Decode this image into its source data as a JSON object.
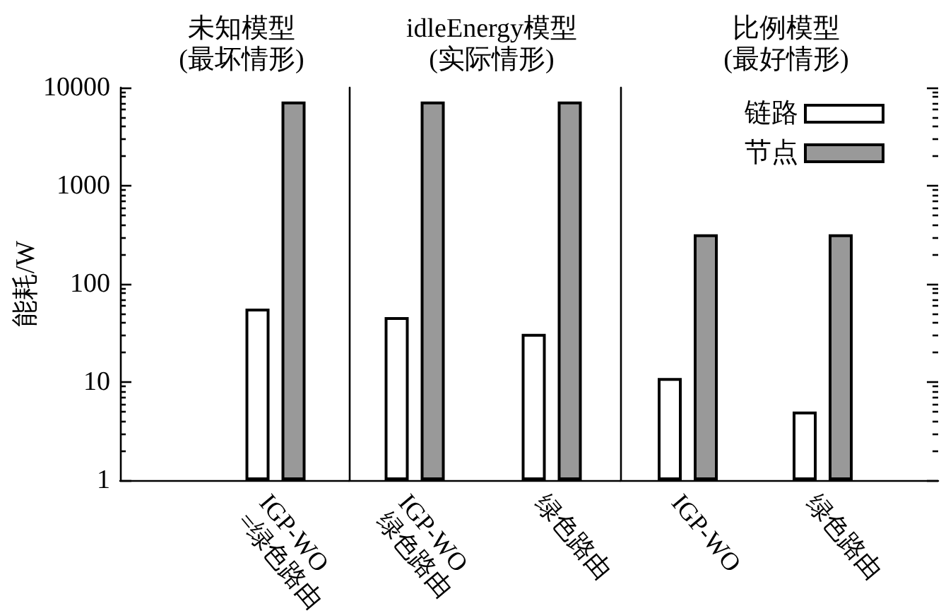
{
  "chart_data": [
    {
      "type": "bar",
      "title": "未知模型",
      "subtitle": "(最坏情形)",
      "ylabel": "能耗/W",
      "categories": [
        "IGP-WO\n=绿色路由"
      ],
      "series": [
        {
          "color": "#ffffff",
          "values": [
            56
          ]
        },
        {
          "color": "#999999",
          "values": [
            7200
          ]
        }
      ],
      "ylim": [
        1,
        10000
      ],
      "yticks": [
        1,
        10,
        100,
        1000,
        10000
      ],
      "log": true
    },
    {
      "type": "bar",
      "title": "idleEnergy模型",
      "subtitle": "(实际情形)",
      "categories": [
        "IGP-WO\n绿色路由",
        "绿色路由"
      ],
      "series": [
        {
          "color": "#ffffff",
          "values": [
            46,
            31
          ]
        },
        {
          "color": "#999999",
          "values": [
            7200,
            7200
          ]
        }
      ],
      "ylim": [
        1,
        10000
      ],
      "yticks": [
        1,
        10,
        100,
        1000,
        10000
      ],
      "log": true,
      "tick_labels": "x"
    },
    {
      "type": "bar",
      "title": "比例模型",
      "subtitle": "(最好情形)",
      "categories": [
        "IGP-WO",
        "绿色路由"
      ],
      "series": [
        {
          "name": "链路",
          "color": "#ffffff",
          "values": [
            11,
            5
          ]
        },
        {
          "name": "节点",
          "color": "#999999",
          "values": [
            320,
            320
          ]
        }
      ],
      "ylim": [
        1,
        10000
      ],
      "yticks": [
        1,
        10,
        100,
        1000,
        10000
      ],
      "log": true,
      "tick_labels": "x",
      "legend": "top right"
    }
  ]
}
